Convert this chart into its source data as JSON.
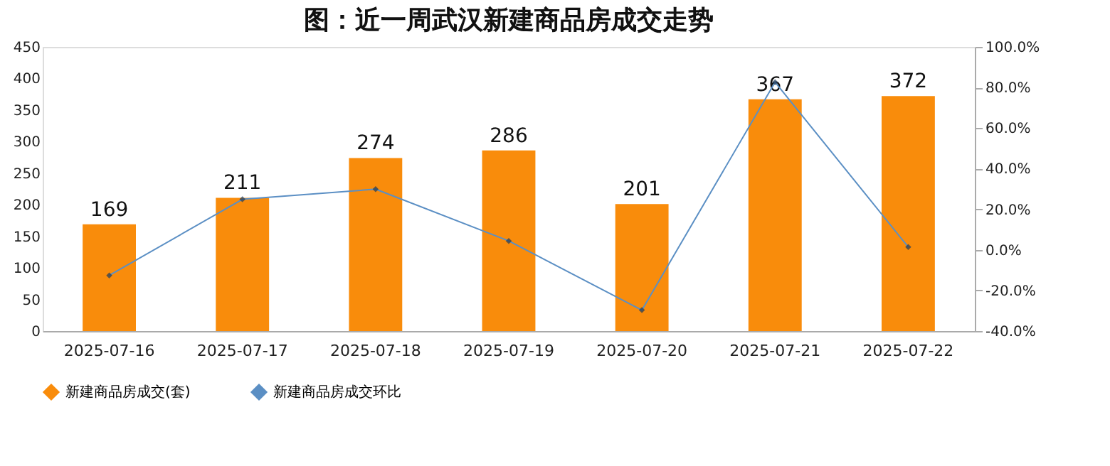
{
  "chart_data": {
    "type": "bar",
    "title": "图：近一周武汉新建商品房成交走势",
    "categories": [
      "2025-07-16",
      "2025-07-17",
      "2025-07-18",
      "2025-07-19",
      "2025-07-20",
      "2025-07-21",
      "2025-07-22"
    ],
    "series": [
      {
        "name": "新建商品房成交(套)",
        "color": "#f98c0b",
        "values": [
          169,
          211,
          274,
          286,
          201,
          367,
          372
        ],
        "value_labels": [
          "169",
          "211",
          "274",
          "286",
          "201",
          "367",
          "372"
        ]
      },
      {
        "name": "新建商品房成交环比",
        "type": "line",
        "axis": "y2",
        "color": "#5b8fc4",
        "marker": "diamond",
        "values": [
          -12.6,
          24.9,
          29.9,
          4.4,
          -29.7,
          82.6,
          1.4
        ]
      }
    ],
    "ylim": [
      0,
      450
    ],
    "yticks": [
      0,
      50,
      100,
      150,
      200,
      250,
      300,
      350,
      400,
      450
    ],
    "y2lim": [
      -40,
      100
    ],
    "y2ticks": [
      {
        "value": -40,
        "label": "-40.0%"
      },
      {
        "value": -20,
        "label": "-20.0%"
      },
      {
        "value": 0,
        "label": "0.0%"
      },
      {
        "value": 20,
        "label": "20.0%"
      },
      {
        "value": 40,
        "label": "40.0%"
      },
      {
        "value": 60,
        "label": "60.0%"
      },
      {
        "value": 80,
        "label": "80.0%"
      },
      {
        "value": 100,
        "label": "100.0%"
      }
    ],
    "legend": "bottom"
  }
}
